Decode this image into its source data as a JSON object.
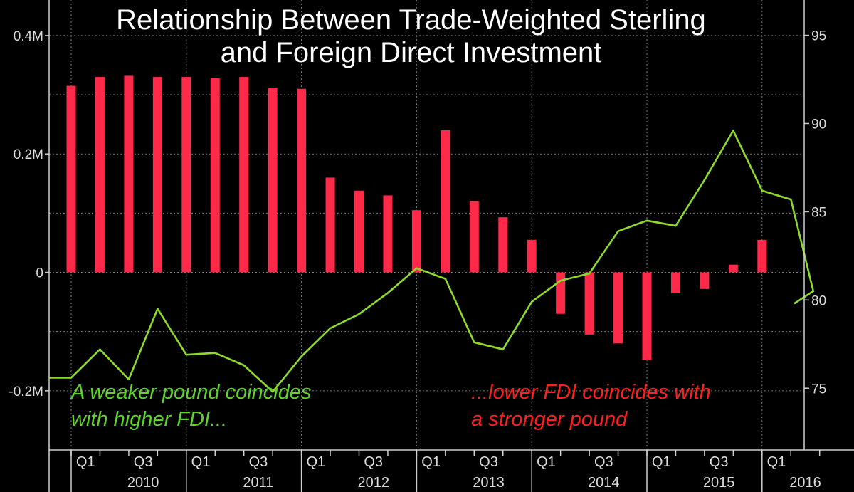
{
  "chart_data": {
    "type": "bar",
    "title_line1": "Relationship Between Trade-Weighted Sterling",
    "title_line2": "and Foreign Direct Investment",
    "quarters": [
      "2010 Q1",
      "2010 Q2",
      "2010 Q3",
      "2010 Q4",
      "2011 Q1",
      "2011 Q2",
      "2011 Q3",
      "2011 Q4",
      "2012 Q1",
      "2012 Q2",
      "2012 Q3",
      "2012 Q4",
      "2013 Q1",
      "2013 Q2",
      "2013 Q3",
      "2013 Q4",
      "2014 Q1",
      "2014 Q2",
      "2014 Q3",
      "2014 Q4",
      "2015 Q1",
      "2015 Q2",
      "2015 Q3",
      "2015 Q4",
      "2016 Q1",
      "2016 Q2"
    ],
    "series": [
      {
        "type": "bar",
        "color": "#ff2a4a",
        "axis": "left",
        "values": [
          0.315,
          0.33,
          0.332,
          0.33,
          0.33,
          0.328,
          0.33,
          0.312,
          0.31,
          0.16,
          0.138,
          0.13,
          0.105,
          0.24,
          0.12,
          0.093,
          0.055,
          -0.07,
          -0.105,
          -0.12,
          -0.148,
          -0.035,
          -0.028,
          0.013,
          0.055,
          null
        ]
      },
      {
        "type": "line",
        "color": "#8fd92b",
        "axis": "right",
        "values": [
          75.6,
          77.2,
          75.5,
          79.5,
          76.9,
          77.0,
          76.3,
          74.8,
          76.8,
          78.4,
          79.2,
          80.4,
          81.8,
          81.2,
          77.6,
          77.2,
          79.9,
          81.1,
          81.5,
          83.9,
          84.5,
          84.2,
          86.8,
          89.6,
          86.2,
          85.7
        ],
        "tail_value": 80.5,
        "end_value": 79.8
      }
    ],
    "left_axis": {
      "ylim": [
        -0.3,
        0.46
      ],
      "ticks": [
        0.4,
        0.2,
        0,
        -0.2
      ],
      "tick_labels": [
        "0.4M",
        "0.2M",
        "0",
        "-0.2M"
      ]
    },
    "right_axis": {
      "ylim": [
        71.5,
        97.0
      ],
      "ticks": [
        95,
        90,
        85,
        80,
        75
      ],
      "tick_labels": [
        "95",
        "90",
        "85",
        "80",
        "75"
      ]
    },
    "x_axis": {
      "quarter_ticks": [
        {
          "label": "Q1",
          "index": 0
        },
        {
          "label": "Q3",
          "index": 2
        },
        {
          "label": "Q1",
          "index": 4
        },
        {
          "label": "Q3",
          "index": 6
        },
        {
          "label": "Q1",
          "index": 8
        },
        {
          "label": "Q3",
          "index": 10
        },
        {
          "label": "Q1",
          "index": 12
        },
        {
          "label": "Q3",
          "index": 14
        },
        {
          "label": "Q1",
          "index": 16
        },
        {
          "label": "Q3",
          "index": 18
        },
        {
          "label": "Q1",
          "index": 20
        },
        {
          "label": "Q3",
          "index": 22
        },
        {
          "label": "Q1",
          "index": 24
        }
      ],
      "years": [
        {
          "label": "2010",
          "start": 0,
          "end": 4
        },
        {
          "label": "2011",
          "start": 4,
          "end": 8
        },
        {
          "label": "2012",
          "start": 8,
          "end": 12
        },
        {
          "label": "2013",
          "start": 12,
          "end": 16
        },
        {
          "label": "2014",
          "start": 16,
          "end": 20
        },
        {
          "label": "2015",
          "start": 20,
          "end": 24
        },
        {
          "label": "2016",
          "start": 24,
          "end": 26
        }
      ]
    },
    "annotations": {
      "green_line1": "A weaker pound coincides",
      "green_line2": "with higher FDI...",
      "red_line1": "...lower FDI coincides with",
      "red_line2": "a stronger pound"
    },
    "colors": {
      "background": "#000000",
      "grid": "#7a7a7a",
      "text": "#dcdcdc",
      "green_text": "#5fd32b",
      "red_text": "#ff1f1f"
    },
    "grid": true
  }
}
